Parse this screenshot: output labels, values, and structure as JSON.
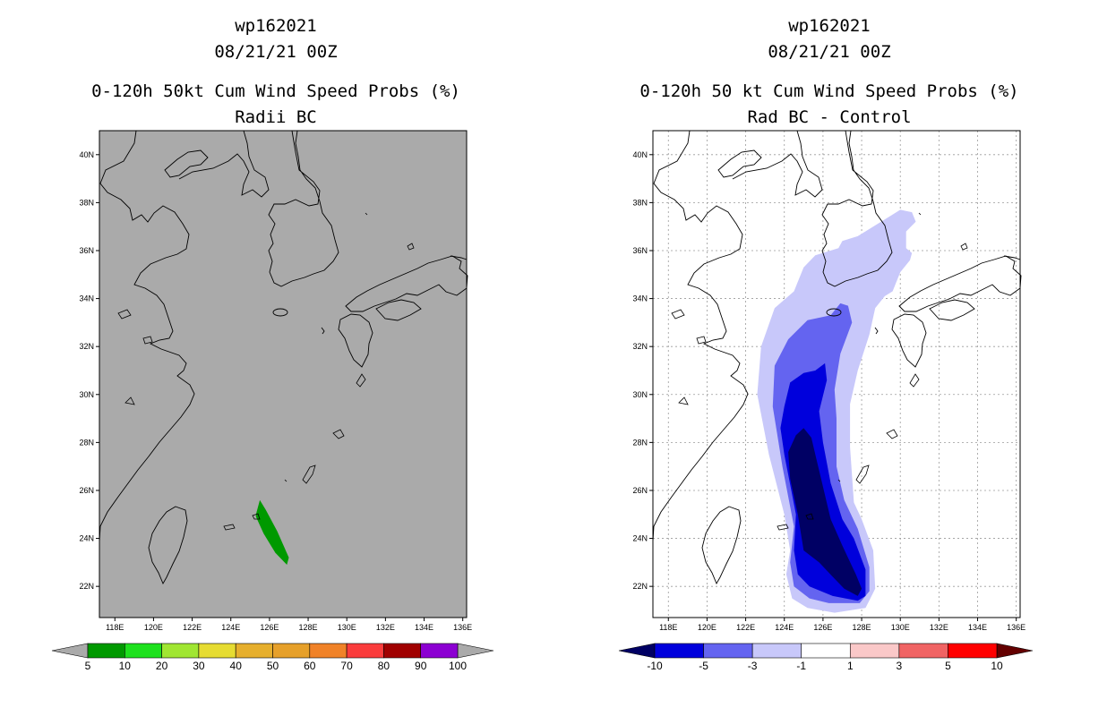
{
  "chart_data": [
    {
      "type": "map-filled-contour",
      "title_lines": [
        "wp162021",
        "08/21/21 00Z",
        "0-120h 50kt Cum Wind Speed Probs (%)",
        "Radii BC"
      ],
      "x_ticks": [
        "118E",
        "120E",
        "122E",
        "124E",
        "126E",
        "128E",
        "130E",
        "132E",
        "134E",
        "136E"
      ],
      "y_ticks": [
        "40N",
        "38N",
        "36N",
        "34N",
        "32N",
        "30N",
        "28N",
        "26N",
        "24N",
        "22N"
      ],
      "xlim": [
        117.2,
        136.2
      ],
      "ylim": [
        20.7,
        41.0
      ],
      "grid": false,
      "background": "#aaaaaa",
      "colorbar": {
        "labels": [
          "5",
          "10",
          "20",
          "30",
          "40",
          "50",
          "60",
          "70",
          "80",
          "90",
          "100"
        ],
        "colors": [
          "#009900",
          "#1ee11e",
          "#a0e632",
          "#e6dc32",
          "#e6af2d",
          "#e6a02a",
          "#f08228",
          "#fa3c3c",
          "#a00000",
          "#8c00d2"
        ],
        "extend_color_low": "#aaaaaa",
        "extend_color_high": "#aaaaaa"
      },
      "regions": [
        {
          "level": "5-10",
          "color": "#009900",
          "polygon": [
            [
              125.3,
              25.0
            ],
            [
              125.5,
              25.6
            ],
            [
              125.8,
              25.2
            ],
            [
              126.4,
              24.3
            ],
            [
              127.0,
              23.2
            ],
            [
              126.9,
              22.9
            ],
            [
              126.3,
              23.4
            ],
            [
              125.7,
              24.2
            ],
            [
              125.3,
              24.9
            ]
          ]
        }
      ]
    },
    {
      "type": "map-filled-contour",
      "title_lines": [
        "wp162021",
        "08/21/21 00Z",
        "0-120h 50 kt Cum Wind Speed Probs (%)",
        "Rad BC - Control"
      ],
      "x_ticks": [
        "118E",
        "120E",
        "122E",
        "124E",
        "126E",
        "128E",
        "130E",
        "132E",
        "134E",
        "136E"
      ],
      "y_ticks": [
        "40N",
        "38N",
        "36N",
        "34N",
        "32N",
        "30N",
        "28N",
        "26N",
        "24N",
        "22N"
      ],
      "xlim": [
        117.2,
        136.2
      ],
      "ylim": [
        20.7,
        41.0
      ],
      "grid": true,
      "background": "#ffffff",
      "colorbar": {
        "labels": [
          "-10",
          "-5",
          "-3",
          "-1",
          "1",
          "3",
          "5",
          "10"
        ],
        "colors": [
          "#0000dc",
          "#6464f0",
          "#c8c8fa",
          "#ffffff",
          "#fac8c8",
          "#f06464",
          "#ff0000"
        ],
        "extend_color_low": "#000064",
        "extend_color_high": "#640000"
      },
      "regions": [
        {
          "level": "-1 to -3",
          "color": "#c8c8fa",
          "polygon": [
            [
              124.4,
              21.5
            ],
            [
              124.1,
              22.5
            ],
            [
              124.3,
              23.5
            ],
            [
              124.0,
              25.0
            ],
            [
              123.2,
              27.5
            ],
            [
              122.6,
              30.0
            ],
            [
              122.8,
              32.0
            ],
            [
              123.5,
              33.6
            ],
            [
              124.5,
              34.3
            ],
            [
              125.0,
              35.3
            ],
            [
              125.6,
              35.8
            ],
            [
              126.8,
              36.1
            ],
            [
              127.0,
              36.4
            ],
            [
              127.8,
              36.6
            ],
            [
              128.8,
              37.1
            ],
            [
              129.6,
              37.5
            ],
            [
              130.0,
              37.7
            ],
            [
              130.6,
              37.6
            ],
            [
              130.8,
              37.2
            ],
            [
              130.3,
              36.8
            ],
            [
              130.3,
              36.1
            ],
            [
              130.6,
              35.9
            ],
            [
              130.5,
              35.6
            ],
            [
              130.0,
              35.1
            ],
            [
              129.6,
              34.3
            ],
            [
              129.2,
              34.1
            ],
            [
              128.7,
              33.6
            ],
            [
              128.4,
              32.5
            ],
            [
              127.8,
              31.0
            ],
            [
              127.4,
              29.6
            ],
            [
              127.4,
              27.8
            ],
            [
              127.6,
              25.5
            ],
            [
              128.0,
              24.8
            ],
            [
              128.6,
              23.5
            ],
            [
              128.7,
              21.9
            ],
            [
              128.2,
              21.1
            ],
            [
              126.6,
              20.9
            ],
            [
              125.2,
              21.1
            ]
          ]
        },
        {
          "level": "-3 to -5",
          "color": "#6464f0",
          "polygon": [
            [
              124.5,
              22.0
            ],
            [
              124.3,
              23.0
            ],
            [
              124.5,
              24.5
            ],
            [
              123.9,
              27.0
            ],
            [
              123.4,
              29.5
            ],
            [
              123.5,
              31.2
            ],
            [
              124.2,
              32.3
            ],
            [
              125.2,
              33.1
            ],
            [
              126.4,
              33.3
            ],
            [
              126.9,
              33.8
            ],
            [
              127.3,
              33.7
            ],
            [
              127.5,
              33.0
            ],
            [
              126.9,
              31.7
            ],
            [
              126.6,
              30.2
            ],
            [
              126.7,
              29.0
            ],
            [
              126.7,
              27.0
            ],
            [
              127.1,
              25.6
            ],
            [
              127.8,
              24.4
            ],
            [
              128.4,
              22.8
            ],
            [
              128.4,
              21.8
            ],
            [
              127.9,
              21.3
            ],
            [
              126.3,
              21.3
            ],
            [
              125.3,
              21.5
            ]
          ]
        },
        {
          "level": "-5 to -10",
          "color": "#0000dc",
          "polygon": [
            [
              124.7,
              22.5
            ],
            [
              124.5,
              23.5
            ],
            [
              124.6,
              25.0
            ],
            [
              124.0,
              27.5
            ],
            [
              123.8,
              28.6
            ],
            [
              124.0,
              29.5
            ],
            [
              124.3,
              30.5
            ],
            [
              125.0,
              30.9
            ],
            [
              125.6,
              31.0
            ],
            [
              126.1,
              31.3
            ],
            [
              126.2,
              30.6
            ],
            [
              125.8,
              29.3
            ],
            [
              126.0,
              28.0
            ],
            [
              126.4,
              26.3
            ],
            [
              127.0,
              24.8
            ],
            [
              127.6,
              24.0
            ],
            [
              128.2,
              22.7
            ],
            [
              128.2,
              21.6
            ],
            [
              127.8,
              21.4
            ],
            [
              126.5,
              21.6
            ],
            [
              125.3,
              22.0
            ]
          ]
        },
        {
          "level": "< -10",
          "color": "#000064",
          "polygon": [
            [
              125.0,
              23.5
            ],
            [
              124.7,
              25.0
            ],
            [
              124.3,
              26.5
            ],
            [
              124.2,
              27.6
            ],
            [
              124.6,
              28.3
            ],
            [
              125.0,
              28.6
            ],
            [
              125.4,
              28.2
            ],
            [
              125.6,
              27.5
            ],
            [
              125.9,
              26.5
            ],
            [
              126.4,
              24.8
            ],
            [
              127.0,
              23.7
            ],
            [
              127.7,
              22.5
            ],
            [
              128.0,
              21.9
            ],
            [
              127.8,
              21.6
            ],
            [
              127.1,
              21.9
            ],
            [
              126.5,
              22.4
            ],
            [
              125.8,
              23.0
            ]
          ]
        }
      ]
    }
  ]
}
